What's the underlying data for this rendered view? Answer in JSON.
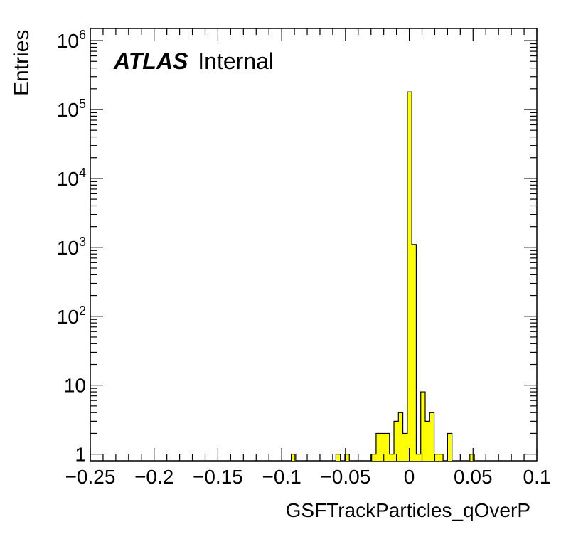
{
  "chart_data": {
    "type": "histogram",
    "title": "",
    "label_bold": "ATLAS",
    "label_status": "Internal",
    "xlabel": "GSFTrackParticles_qOverP",
    "ylabel": "Entries",
    "xlim": [
      -0.25,
      0.1
    ],
    "ylim": [
      0.8,
      1500000
    ],
    "yscale": "log",
    "x_ticks": [
      "−0.25",
      "−0.2",
      "−0.15",
      "−0.1",
      "−0.05",
      "0",
      "0.05",
      "0.1"
    ],
    "x_tick_values": [
      -0.25,
      -0.2,
      -0.15,
      -0.1,
      -0.05,
      0,
      0.05,
      0.1
    ],
    "y_ticks": [
      "1",
      "10",
      "10^2",
      "10^3",
      "10^4",
      "10^5",
      "10^6"
    ],
    "y_tick_values": [
      1,
      10,
      100,
      1000,
      10000,
      100000,
      1000000
    ],
    "bin_width": 0.0035,
    "fill_color": "#ffff00",
    "line_color": "#000000",
    "bins": [
      {
        "x": -0.0925,
        "y": 1
      },
      {
        "x": -0.0575,
        "y": 1
      },
      {
        "x": -0.0505,
        "y": 1
      },
      {
        "x": -0.0295,
        "y": 1
      },
      {
        "x": -0.026,
        "y": 2
      },
      {
        "x": -0.0225,
        "y": 2
      },
      {
        "x": -0.019,
        "y": 2
      },
      {
        "x": -0.0155,
        "y": 1
      },
      {
        "x": -0.012,
        "y": 3
      },
      {
        "x": -0.0085,
        "y": 4
      },
      {
        "x": -0.005,
        "y": 2
      },
      {
        "x": -0.0015,
        "y": 180000
      },
      {
        "x": 0.002,
        "y": 1100
      },
      {
        "x": 0.0055,
        "y": 1
      },
      {
        "x": 0.009,
        "y": 8
      },
      {
        "x": 0.0125,
        "y": 3
      },
      {
        "x": 0.016,
        "y": 4
      },
      {
        "x": 0.0195,
        "y": 1
      },
      {
        "x": 0.023,
        "y": 1
      },
      {
        "x": 0.03,
        "y": 2
      },
      {
        "x": 0.0475,
        "y": 1
      }
    ]
  }
}
